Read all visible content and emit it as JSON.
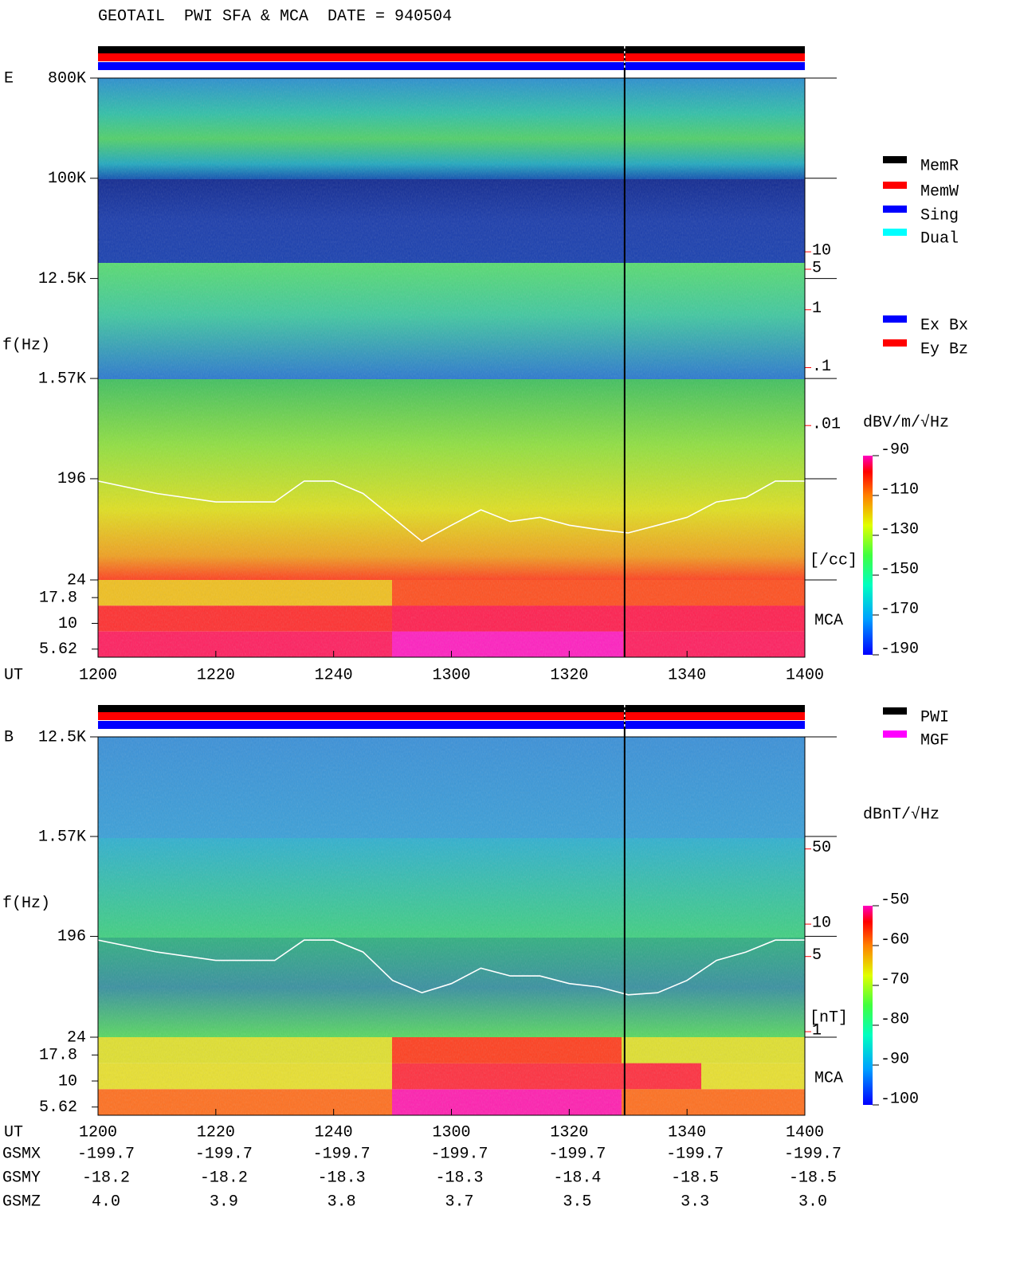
{
  "title": "GEOTAIL  PWI SFA & MCA  DATE = 940504",
  "chart_data": [
    {
      "type": "spectrogram",
      "panel": "E",
      "x_label": "UT",
      "y_label": "f(Hz)",
      "xlim": [
        720,
        840
      ],
      "xticks": [
        {
          "value": 720,
          "label": "1200"
        },
        {
          "value": 740,
          "label": "1220"
        },
        {
          "value": 760,
          "label": "1240"
        },
        {
          "value": 780,
          "label": "1300"
        },
        {
          "value": 800,
          "label": "1320"
        },
        {
          "value": 820,
          "label": "1340"
        },
        {
          "value": 840,
          "label": "1400"
        }
      ],
      "ylim": [
        24,
        800000
      ],
      "log_y": true,
      "yticks": [
        {
          "value": 800000,
          "label": "800K"
        },
        {
          "value": 100000,
          "label": "100K"
        },
        {
          "value": 12500,
          "label": "12.5K"
        },
        {
          "value": 1570,
          "label": "1.57K"
        },
        196,
        24
      ],
      "mca_label": "MCA",
      "mca_ticks": [
        17.8,
        10,
        5.62
      ],
      "y2lim": [
        1e-06,
        10000
      ],
      "log_y2": true,
      "y2_color": "#ff0000",
      "y2ticks": [
        10,
        5,
        1,
        {
          "value": 0.1,
          "label": ".1"
        },
        {
          "value": 0.01,
          "label": ".01"
        }
      ],
      "y2_label": "[/cc]",
      "series": [
        {
          "color": "#ffffff",
          "axis": "y2",
          "x": [
            720,
            730,
            740,
            750,
            755,
            760,
            765,
            770,
            775,
            780,
            785,
            790,
            795,
            800,
            805,
            810,
            815,
            820,
            825,
            830,
            835,
            840
          ],
          "values": [
            0.0011,
            0.00067,
            0.00048,
            0.00048,
            0.0011,
            0.0011,
            0.00067,
            0.00026,
            0.0001,
            0.00019,
            0.00035,
            0.00022,
            0.00026,
            0.00019,
            0.00016,
            0.00014,
            0.00019,
            0.00026,
            0.00048,
            0.00057,
            0.0011,
            0.0011
          ]
        }
      ],
      "event_x": 809.4,
      "colorbar": {
        "label": "dBV/m/√Hz",
        "lim": [
          -190,
          -90
        ],
        "ticks": [
          -90,
          -110,
          -130,
          -150,
          -170,
          -190
        ]
      },
      "legend": [
        {
          "name": "MemR",
          "color": "#000000"
        },
        {
          "name": "MemW",
          "color": "#ff0000"
        },
        {
          "name": "Sing",
          "color": "#0000ff"
        },
        {
          "name": "Dual",
          "color": "#00ffff"
        }
      ],
      "legend2": [
        {
          "name": "Ex Bx",
          "color": "#0000ff"
        },
        {
          "name": "Ey Bz",
          "color": "#ff0000"
        }
      ]
    },
    {
      "type": "spectrogram",
      "panel": "B",
      "x_label": "UT",
      "y_label": "f(Hz)",
      "xlim": [
        720,
        840
      ],
      "xticks": [
        {
          "value": 720,
          "label": "1200"
        },
        {
          "value": 740,
          "label": "1220"
        },
        {
          "value": 760,
          "label": "1240"
        },
        {
          "value": 780,
          "label": "1300"
        },
        {
          "value": 800,
          "label": "1320"
        },
        {
          "value": 820,
          "label": "1340"
        },
        {
          "value": 840,
          "label": "1400"
        }
      ],
      "ylim": [
        24,
        12500
      ],
      "log_y": true,
      "yticks": [
        {
          "value": 12500,
          "label": "12.5K"
        },
        {
          "value": 1570,
          "label": "1.57K"
        },
        196,
        24
      ],
      "mca_label": "MCA",
      "mca_ticks": [
        17.8,
        10,
        5.62
      ],
      "y2lim": [
        0.167,
        551
      ],
      "log_y2": true,
      "y2_color": "#ff0000",
      "y2ticks": [
        50,
        10,
        5,
        1
      ],
      "y2_label": "[nT]",
      "series": [
        {
          "color": "#ffffff",
          "axis": "y2",
          "x": [
            720,
            730,
            740,
            750,
            755,
            760,
            765,
            770,
            775,
            780,
            785,
            790,
            795,
            800,
            805,
            810,
            815,
            820,
            825,
            830,
            835,
            840
          ],
          "values": [
            7.1,
            5.5,
            4.6,
            4.6,
            7.1,
            7.1,
            5.5,
            3.0,
            2.3,
            2.8,
            3.9,
            3.3,
            3.3,
            2.8,
            2.6,
            2.2,
            2.3,
            3.0,
            4.6,
            5.5,
            7.1,
            7.1
          ]
        }
      ],
      "event_x": 809.4,
      "colorbar": {
        "label": "dBnT/√Hz",
        "lim": [
          -100,
          -50
        ],
        "ticks": [
          -50,
          -60,
          -70,
          -80,
          -90,
          -100
        ]
      },
      "legend": [
        {
          "name": "PWI",
          "color": "#000000"
        },
        {
          "name": "MGF",
          "color": "#ff00ff"
        }
      ]
    }
  ],
  "ephemeris": [
    {
      "label": "GSMX",
      "values": [
        "-199.7",
        "-199.7",
        "-199.7",
        "-199.7",
        "-199.7",
        "-199.7",
        "-199.7"
      ]
    },
    {
      "label": "GSMY",
      "values": [
        "-18.2",
        "-18.2",
        "-18.3",
        "-18.3",
        "-18.4",
        "-18.5",
        "-18.5"
      ]
    },
    {
      "label": "GSMZ",
      "values": [
        "4.0",
        "3.9",
        "3.8",
        "3.7",
        "3.5",
        "3.3",
        "3.0"
      ]
    }
  ]
}
